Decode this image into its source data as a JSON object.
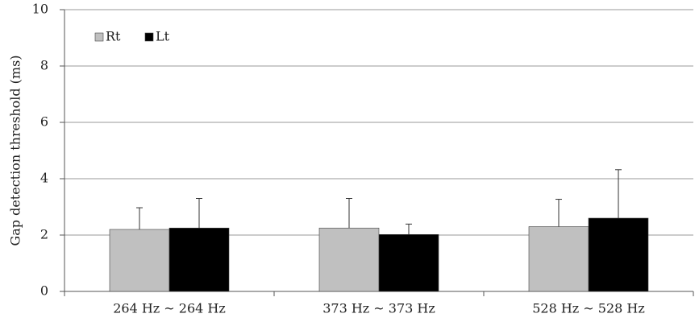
{
  "chart_data": {
    "type": "bar",
    "y_label": "Gap detection threshold (ms)",
    "categories": [
      "264 Hz ~ 264 Hz",
      "373 Hz ~ 373 Hz",
      "528 Hz ~ 528 Hz"
    ],
    "series": [
      {
        "name": "Rt",
        "color": "#c0c0c0",
        "values": [
          2.2,
          2.25,
          2.3
        ],
        "errors": [
          0.77,
          1.05,
          0.97
        ]
      },
      {
        "name": "Lt",
        "color": "#000000",
        "values": [
          2.25,
          2.02,
          2.6
        ],
        "errors": [
          1.05,
          0.37,
          1.72
        ]
      }
    ],
    "ylim": [
      0,
      10
    ],
    "yticks": [
      0,
      2,
      4,
      6,
      8,
      10
    ],
    "grid": true,
    "legend": "top-left"
  }
}
